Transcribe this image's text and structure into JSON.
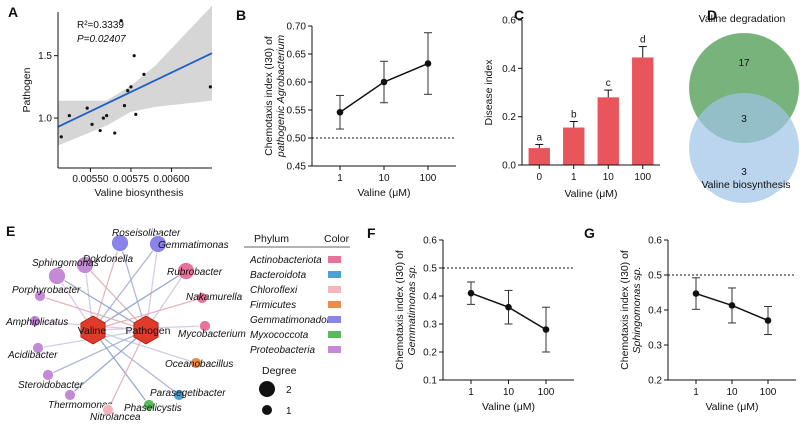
{
  "chart_data": [
    {
      "panel": "A",
      "type": "scatter",
      "xlabel": "Valine biosynthesis",
      "ylabel": "Pathogen",
      "annotation": {
        "r2": "R²=0.3339",
        "p": "P=0.02407"
      },
      "x_ticks": [
        0.0055,
        0.00575,
        0.006
      ],
      "x_tick_labels": [
        "0.00550",
        "0.00575",
        "0.00600"
      ],
      "y_ticks": [
        1.0,
        1.5
      ],
      "y_tick_labels": [
        "1.0",
        "1.5"
      ],
      "xlim": [
        0.0053,
        0.00625
      ],
      "ylim": [
        0.6,
        1.85
      ],
      "points": [
        {
          "x": 0.00532,
          "y": 0.85
        },
        {
          "x": 0.00537,
          "y": 1.02
        },
        {
          "x": 0.00548,
          "y": 1.08
        },
        {
          "x": 0.00551,
          "y": 0.95
        },
        {
          "x": 0.00556,
          "y": 0.9
        },
        {
          "x": 0.00558,
          "y": 1.0
        },
        {
          "x": 0.0056,
          "y": 1.02
        },
        {
          "x": 0.00565,
          "y": 0.88
        },
        {
          "x": 0.00569,
          "y": 1.78
        },
        {
          "x": 0.00571,
          "y": 1.1
        },
        {
          "x": 0.00573,
          "y": 1.22
        },
        {
          "x": 0.00575,
          "y": 1.25
        },
        {
          "x": 0.00577,
          "y": 1.5
        },
        {
          "x": 0.00578,
          "y": 1.03
        },
        {
          "x": 0.00583,
          "y": 1.35
        },
        {
          "x": 0.00624,
          "y": 1.25
        }
      ],
      "fit_line": {
        "x": [
          0.0053,
          0.00625
        ],
        "y": [
          0.93,
          1.52
        ]
      },
      "ci_band": {
        "x": [
          0.0053,
          0.0056,
          0.00575,
          0.0059,
          0.00625
        ],
        "lower": [
          0.78,
          0.94,
          1.05,
          1.09,
          1.14
        ],
        "upper": [
          1.14,
          1.14,
          1.26,
          1.42,
          1.9
        ]
      },
      "colors": {
        "line": "#1f5fc8",
        "band": "#c8c8c8"
      }
    },
    {
      "panel": "B",
      "type": "line",
      "xlabel": "Valine (μM)",
      "ylabel_lines": [
        "Chemotaxis index (I30) of",
        "pathogenic Agrobacterium"
      ],
      "categories": [
        "1",
        "10",
        "100"
      ],
      "values": [
        0.546,
        0.6,
        0.633
      ],
      "errors": [
        0.03,
        0.037,
        0.055
      ],
      "ylim": [
        0.45,
        0.7
      ],
      "y_ticks": [
        0.45,
        0.5,
        0.55,
        0.6,
        0.65,
        0.7
      ],
      "y_tick_labels": [
        "0.45",
        "0.50",
        "0.55",
        "0.60",
        "0.65",
        "0.70"
      ],
      "reference_line": 0.5
    },
    {
      "panel": "C",
      "type": "bar",
      "xlabel": "Valine (μM)",
      "ylabel": "Disease index",
      "categories": [
        "0",
        "1",
        "10",
        "100"
      ],
      "values": [
        0.07,
        0.155,
        0.28,
        0.445
      ],
      "errors": [
        0.015,
        0.025,
        0.03,
        0.045
      ],
      "letters": [
        "a",
        "b",
        "c",
        "d"
      ],
      "ylim": [
        0,
        0.6
      ],
      "y_ticks": [
        0,
        0.2,
        0.4,
        0.6
      ],
      "y_tick_labels": [
        "0.0",
        "0.2",
        "0.4",
        "0.6"
      ],
      "colors": {
        "bar": "#e8555a"
      }
    },
    {
      "panel": "D",
      "type": "venn",
      "sets": [
        {
          "name": "Valine degradation",
          "only": 17,
          "color": "#6aab6e"
        },
        {
          "name": "Valine biosynthesis",
          "only": 3,
          "color": "#9fc3e8"
        }
      ],
      "overlap": 3
    },
    {
      "panel": "E",
      "type": "network",
      "hubs": [
        "Valine",
        "Pathogen"
      ],
      "legend_header": {
        "phylum": "Phylum",
        "color": "Color"
      },
      "phyla": [
        {
          "name": "Actinobacteriota",
          "color": "#e8739a"
        },
        {
          "name": "Bacteroidota",
          "color": "#4d9fd6"
        },
        {
          "name": "Chloroflexi",
          "color": "#f2b6bc"
        },
        {
          "name": "Firmicutes",
          "color": "#ee8a4a"
        },
        {
          "name": "Gemmatimonadota",
          "color": "#8b84e8"
        },
        {
          "name": "Myxococcota",
          "color": "#5cb85c"
        },
        {
          "name": "Proteobacteria",
          "color": "#c48ad6"
        }
      ],
      "nodes": [
        {
          "name": "Dokdonella",
          "phylum": "Proteobacteria",
          "degree": 2
        },
        {
          "name": "Roseisolibacter",
          "phylum": "Gemmatimonadota",
          "degree": 2
        },
        {
          "name": "Gemmatimonas",
          "phylum": "Gemmatimonadota",
          "degree": 2
        },
        {
          "name": "Sphingomonas",
          "phylum": "Proteobacteria",
          "degree": 2
        },
        {
          "name": "Rubrobacter",
          "phylum": "Actinobacteriota",
          "degree": 2
        },
        {
          "name": "Porphyrobacter",
          "phylum": "Proteobacteria",
          "degree": 1
        },
        {
          "name": "Nakamurella",
          "phylum": "Actinobacteriota",
          "degree": 1
        },
        {
          "name": "Amphiplicatus",
          "phylum": "Proteobacteria",
          "degree": 1
        },
        {
          "name": "Mycobacterium",
          "phylum": "Actinobacteriota",
          "degree": 1
        },
        {
          "name": "Acidibacter",
          "phylum": "Proteobacteria",
          "degree": 1
        },
        {
          "name": "Oceanobacillus",
          "phylum": "Firmicutes",
          "degree": 1
        },
        {
          "name": "Steroidobacter",
          "phylum": "Proteobacteria",
          "degree": 1
        },
        {
          "name": "Parasegetibacter",
          "phylum": "Bacteroidota",
          "degree": 1
        },
        {
          "name": "Thermomonas",
          "phylum": "Proteobacteria",
          "degree": 1
        },
        {
          "name": "Phaselicystis",
          "phylum": "Myxococcota",
          "degree": 1
        },
        {
          "name": "Nitrolancea",
          "phylum": "Chloroflexi",
          "degree": 1
        }
      ],
      "degree_legend": {
        "title": "Degree",
        "values": [
          "2",
          "1"
        ]
      }
    },
    {
      "panel": "F",
      "type": "line",
      "xlabel": "Valine (μM)",
      "ylabel_lines": [
        "Chemotaxis index (I30) of",
        "Gemmatimonas sp."
      ],
      "categories": [
        "1",
        "10",
        "100"
      ],
      "values": [
        0.41,
        0.36,
        0.28
      ],
      "errors": [
        0.04,
        0.06,
        0.08
      ],
      "ylim": [
        0.1,
        0.6
      ],
      "y_ticks": [
        0.1,
        0.2,
        0.3,
        0.4,
        0.5,
        0.6
      ],
      "y_tick_labels": [
        "0.1",
        "0.2",
        "0.3",
        "0.4",
        "0.5",
        "0.6"
      ],
      "reference_line": 0.5
    },
    {
      "panel": "G",
      "type": "line",
      "xlabel": "Valine (μM)",
      "ylabel_lines": [
        "Chemotaxis index (I30) of",
        "Sphingomonas sp."
      ],
      "categories": [
        "1",
        "10",
        "100"
      ],
      "values": [
        0.447,
        0.413,
        0.37
      ],
      "errors": [
        0.045,
        0.05,
        0.04
      ],
      "ylim": [
        0.2,
        0.6
      ],
      "y_ticks": [
        0.2,
        0.3,
        0.4,
        0.5,
        0.6
      ],
      "y_tick_labels": [
        "0.2",
        "0.3",
        "0.4",
        "0.5",
        "0.6"
      ],
      "reference_line": 0.5
    }
  ]
}
